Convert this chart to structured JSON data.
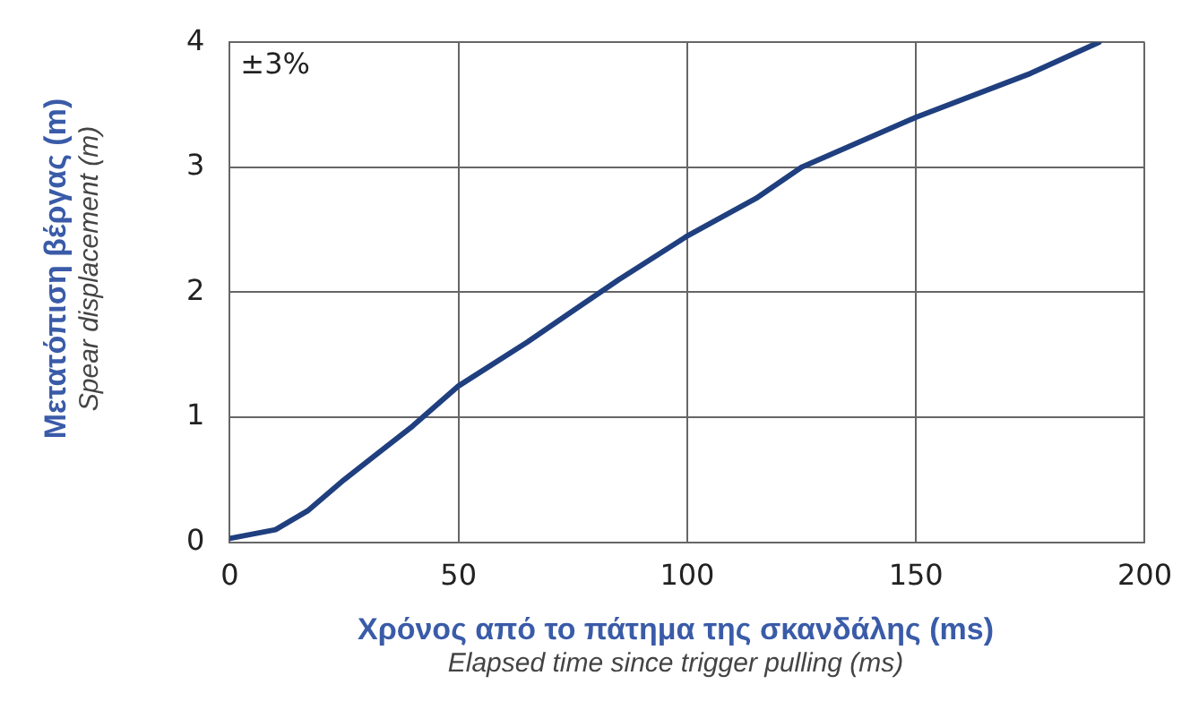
{
  "chart_data": {
    "type": "line",
    "xlabel": "Χρόνος από το πάτημα της σκανδάλης (ms)\nElapsed time since trigger pulling (ms)",
    "ylabel": "Μετατόπιση βέργας (m)\nSpear displacement (m)",
    "annotations": [
      "±3%"
    ],
    "x": [
      0,
      10,
      17,
      25,
      40,
      50,
      65,
      75,
      85,
      100,
      115,
      125,
      150,
      175,
      190
    ],
    "series": [
      {
        "color": "#1f3f7f",
        "values": [
          0.03,
          0.1,
          0.25,
          0.5,
          0.93,
          1.25,
          1.6,
          1.85,
          2.1,
          2.45,
          2.75,
          3.0,
          3.4,
          3.75,
          4.0
        ]
      }
    ],
    "xlim": [
      0,
      200
    ],
    "xticks": [
      0,
      50,
      100,
      150,
      200
    ],
    "ylim": [
      0,
      4
    ],
    "yticks": [
      0,
      1,
      2,
      3,
      4
    ],
    "grid": true,
    "legend": false,
    "marker": "none",
    "line_style": "solid"
  }
}
